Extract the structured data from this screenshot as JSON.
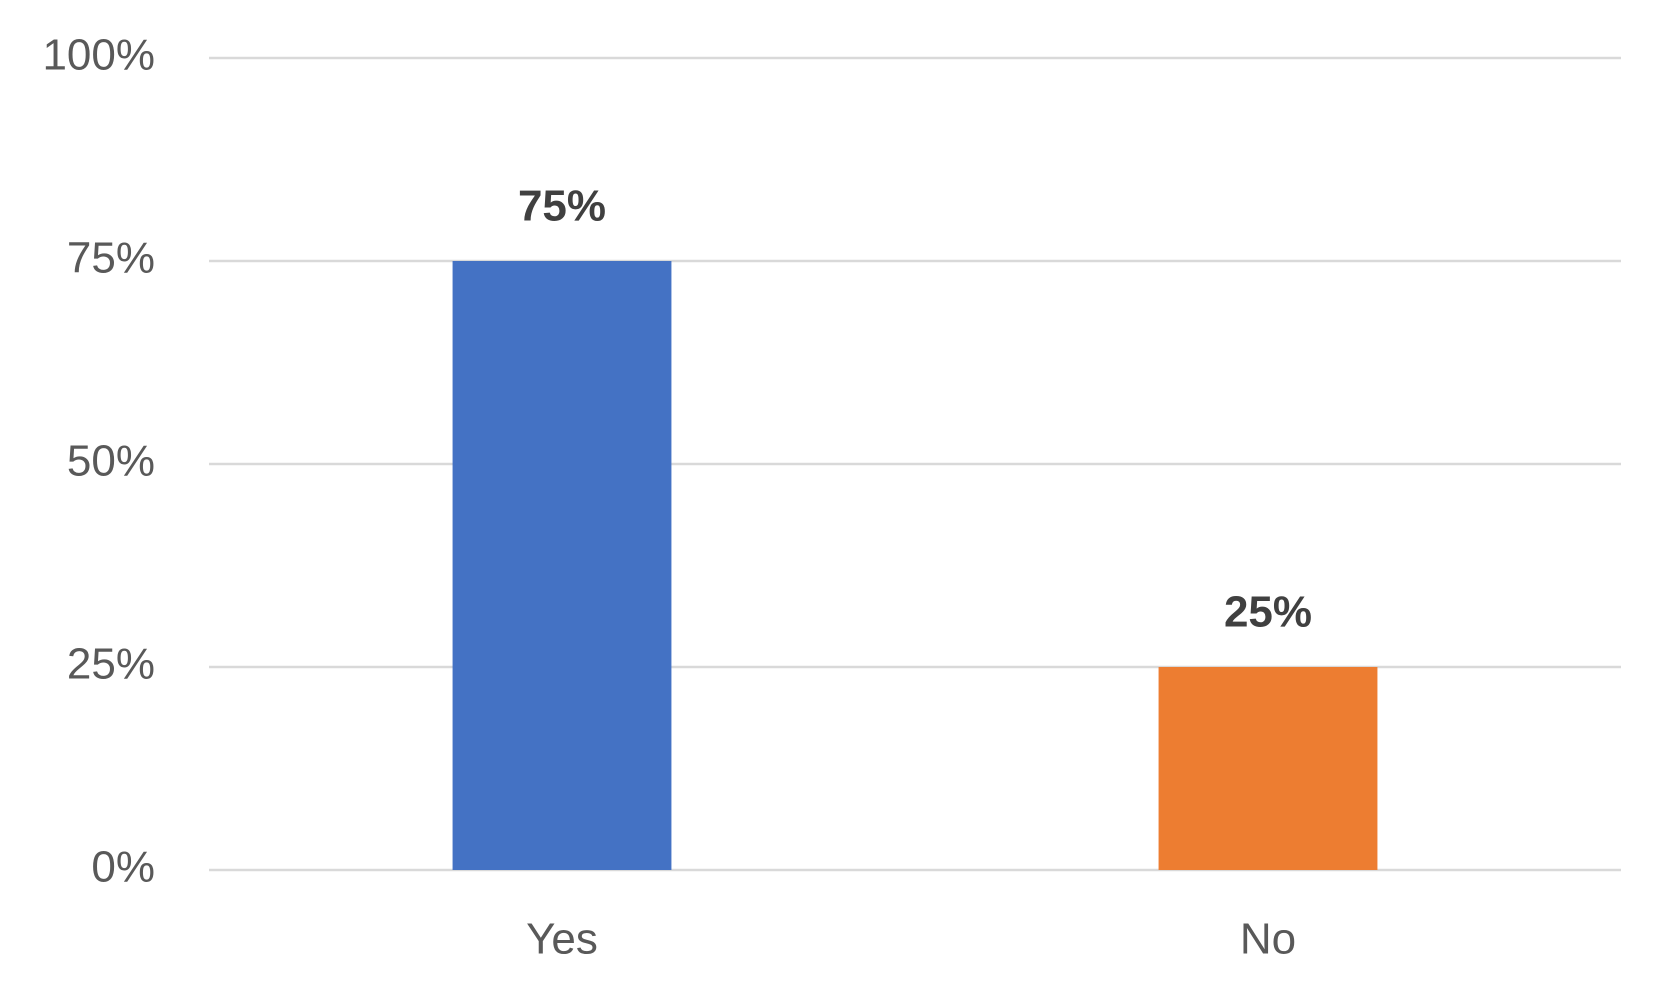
{
  "chart_data": {
    "type": "bar",
    "categories": [
      "Yes",
      "No"
    ],
    "values": [
      75,
      25
    ],
    "value_labels": [
      "75%",
      "25%"
    ],
    "colors": [
      "#4472c4",
      "#ed7d31"
    ],
    "ylim": [
      0,
      100
    ],
    "yticks": [
      {
        "value": 0,
        "label": "0%"
      },
      {
        "value": 25,
        "label": "25%"
      },
      {
        "value": 50,
        "label": "50%"
      },
      {
        "value": 75,
        "label": "75%"
      },
      {
        "value": 100,
        "label": "100%"
      }
    ],
    "grid": true
  }
}
